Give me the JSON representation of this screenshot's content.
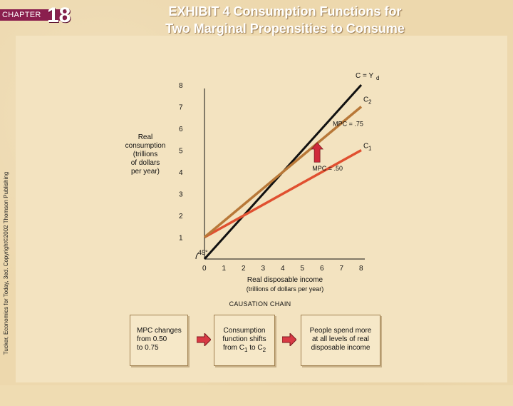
{
  "header": {
    "chapter_label": "CHAPTER",
    "chapter_number": "18",
    "title_line1": "EXHIBIT 4 Consumption Functions for",
    "title_line2": "Two Marginal Propensities to Consume"
  },
  "credit": "Tucker, Economics for Today, 3ed. Copyright©2002 Thomson Publishing",
  "chart_data": {
    "type": "line",
    "xlabel": "Real disposable income",
    "xlabel_sub": "(trillions of dollars per year)",
    "ylabel": "Real\nconsumption\n(trillions\nof dollars\nper year)",
    "x_ticks": [
      "0",
      "1",
      "2",
      "3",
      "4",
      "5",
      "6",
      "7",
      "8"
    ],
    "y_ticks": [
      "1",
      "2",
      "3",
      "4",
      "5",
      "6",
      "7",
      "8"
    ],
    "xlim": [
      0,
      8
    ],
    "ylim": [
      0,
      8
    ],
    "angle_label": "45°",
    "series": [
      {
        "name": "C = Yd",
        "color": "#111111",
        "x": [
          0,
          8
        ],
        "y": [
          0,
          8
        ]
      },
      {
        "name": "C1",
        "color": "#e05030",
        "x": [
          0,
          8
        ],
        "y": [
          1,
          5
        ]
      },
      {
        "name": "C2",
        "color": "#b87838",
        "x": [
          0,
          8
        ],
        "y": [
          1,
          7
        ]
      }
    ],
    "annotations": {
      "c_eq_label": "C = Y",
      "c_eq_sub": "d",
      "c1_label": "C",
      "c1_sub": "1",
      "c2_label": "C",
      "c2_sub": "2",
      "mpc_c1": "MPC = .50",
      "mpc_c2": "MPC = .75"
    },
    "shift_arrow_color": "#d02a3a"
  },
  "causation": {
    "title": "CAUSATION CHAIN",
    "box1": "MPC changes\nfrom 0.50\nto 0.75",
    "box2_line1": "Consumption",
    "box2_line2": "function shifts",
    "box2_line3_a": "from C",
    "box2_line3_sub1": "1",
    "box2_line3_b": " to C",
    "box2_line3_sub2": "2",
    "box3": "People spend more\nat all levels of real\ndisposable income",
    "arrow_color": "#d83a44"
  }
}
